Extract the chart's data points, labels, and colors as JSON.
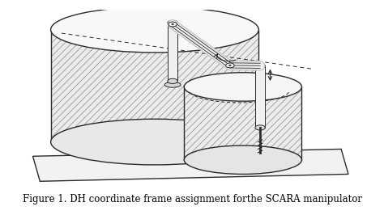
{
  "caption": "Figure 1. DH coordinate frame assignment forthe SCARA manipulator",
  "caption_fontsize": 8.5,
  "bg_color": "#ffffff",
  "fig_width": 4.74,
  "fig_height": 2.66,
  "dpi": 100,
  "ec": "#2a2a2a",
  "hatch_color": "#888888"
}
